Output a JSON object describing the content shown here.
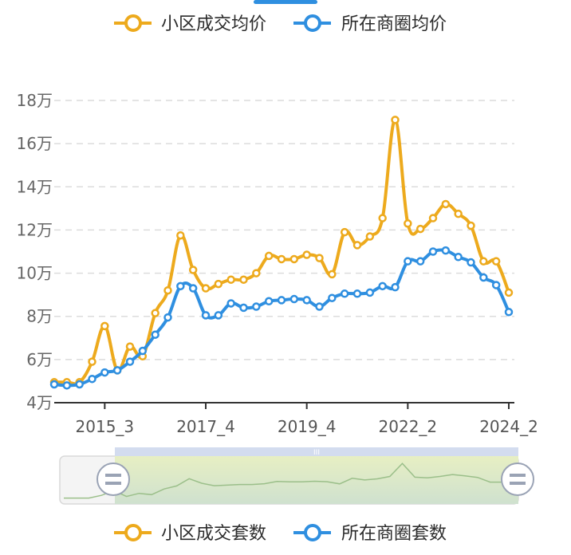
{
  "legend_top": [
    {
      "label": "小区成交均价",
      "color": "#EDAA1D"
    },
    {
      "label": "所在商圈均价",
      "color": "#2F8FE0"
    }
  ],
  "legend_bottom": [
    {
      "label": "小区成交套数",
      "color": "#EDAA1D"
    },
    {
      "label": "所在商圈套数",
      "color": "#2F8FE0"
    }
  ],
  "chart_data": {
    "type": "line",
    "y_ticks": [
      "4万",
      "6万",
      "8万",
      "10万",
      "12万",
      "14万",
      "16万",
      "18万"
    ],
    "ylim": [
      4,
      18
    ],
    "x_tick_labels": [
      "2015_3",
      "2017_4",
      "2019_4",
      "2022_2",
      "2024_2"
    ],
    "grid": true,
    "legend_position": "top-center",
    "series": [
      {
        "name": "小区成交均价",
        "color": "#EDAA1D",
        "values": [
          4.95,
          4.95,
          4.95,
          5.9,
          7.55,
          5.5,
          6.6,
          6.15,
          8.15,
          9.2,
          11.75,
          10.15,
          9.3,
          9.5,
          9.7,
          9.7,
          10.0,
          10.8,
          10.65,
          10.65,
          10.85,
          10.7,
          9.95,
          11.9,
          11.3,
          11.7,
          12.55,
          17.1,
          12.3,
          12.05,
          12.55,
          13.2,
          12.75,
          12.2,
          10.55,
          10.55,
          9.1
        ]
      },
      {
        "name": "所在商圈均价",
        "color": "#2F8FE0",
        "values": [
          4.85,
          4.8,
          4.85,
          5.1,
          5.4,
          5.5,
          5.9,
          6.4,
          7.15,
          7.95,
          9.4,
          9.3,
          8.05,
          8.05,
          8.6,
          8.4,
          8.45,
          8.7,
          8.75,
          8.8,
          8.75,
          8.45,
          8.85,
          9.05,
          9.05,
          9.1,
          9.4,
          9.35,
          10.55,
          10.55,
          11.0,
          11.05,
          10.75,
          10.5,
          9.8,
          9.45,
          8.2
        ]
      }
    ]
  },
  "zoom_slider": {
    "handle_left_icon": "handle-grip-icon",
    "handle_right_icon": "handle-grip-icon",
    "grip_glyph": "III",
    "colors": {
      "window": "#E3EFCF",
      "track": "#F1F1F1",
      "line": "#9BBF8A"
    }
  }
}
